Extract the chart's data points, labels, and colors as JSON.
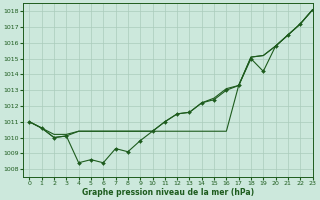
{
  "title": "Graphe pression niveau de la mer (hPa)",
  "bg_color": "#cce8dc",
  "grid_color": "#aaccbb",
  "line_color": "#1e5c1e",
  "xlim": [
    -0.5,
    23
  ],
  "ylim": [
    1007.5,
    1018.5
  ],
  "yticks": [
    1008,
    1009,
    1010,
    1011,
    1012,
    1013,
    1014,
    1015,
    1016,
    1017,
    1018
  ],
  "xticks": [
    0,
    1,
    2,
    3,
    4,
    5,
    6,
    7,
    8,
    9,
    10,
    11,
    12,
    13,
    14,
    15,
    16,
    17,
    18,
    19,
    20,
    21,
    22,
    23
  ],
  "s1": [
    1011.0,
    1010.6,
    1010.0,
    1010.1,
    1008.4,
    1008.6,
    1008.4,
    1009.3,
    1009.1,
    1009.8,
    1010.4,
    1011.0,
    1011.5,
    1011.6,
    1012.2,
    1012.4,
    1013.0,
    1013.3,
    1015.0,
    1014.2,
    1015.8,
    1016.5,
    1017.2,
    1018.1
  ],
  "s2": [
    1011.0,
    1010.6,
    1010.0,
    1010.1,
    1010.4,
    1010.4,
    1010.4,
    1010.4,
    1010.4,
    1010.4,
    1010.4,
    1011.0,
    1011.5,
    1011.6,
    1012.2,
    1012.5,
    1013.1,
    1013.3,
    1015.1,
    1015.2,
    1015.8,
    1016.5,
    1017.2,
    1018.1
  ],
  "s3": [
    1011.0,
    1010.6,
    1010.2,
    1010.2,
    1010.4,
    1010.4,
    1010.4,
    1010.4,
    1010.4,
    1010.4,
    1010.4,
    1010.4,
    1010.4,
    1010.4,
    1010.4,
    1010.4,
    1010.4,
    1013.3,
    1015.1,
    1015.2,
    1015.8,
    1016.5,
    1017.2,
    1018.1
  ]
}
